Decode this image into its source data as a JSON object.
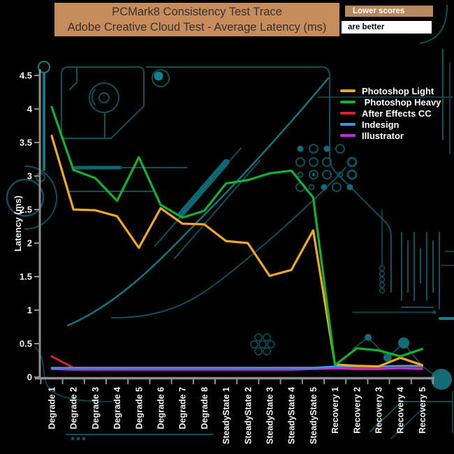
{
  "header": {
    "title_line1": "PCMark8 Consistency Test Trace",
    "title_line2": "Adobe Creative Cloud Test -  Average Latency (ms)",
    "badge_top": "Lower scores",
    "badge_bottom": "are better"
  },
  "colors": {
    "title_bg": "#c78c5c",
    "badge_tan_bg": "#b8895e",
    "badge_white_bg": "#ffffff",
    "axis": "#8f8f8f",
    "axis_text": "#f5f5f5",
    "circuit_dark": "#0c525a",
    "circuit_bright": "#12828d"
  },
  "chart_data": {
    "type": "line",
    "title": "PCMark8 Consistency Test Trace — Adobe Creative Cloud Test - Average Latency (ms)",
    "xlabel": "",
    "ylabel": "Latency (ms)",
    "ylim": [
      0,
      4.5
    ],
    "ytick_labels": [
      "0",
      "0.5",
      "1",
      "1.5",
      "2",
      "2.5",
      "3",
      "3.5",
      "4",
      "4.5"
    ],
    "grid": false,
    "legend_position": "top-right",
    "categories": [
      "Degrade 1",
      "Degrade 2",
      "Degrade 3",
      "Degrade 4",
      "Degrade 5",
      "Degrade 6",
      "Degrade 7",
      "Degrade 8",
      "SteadyState 1",
      "SteadyState 2",
      "SteadyState 3",
      "SteadyState 4",
      "SteadyState 5",
      "Recovery 1",
      "Recovery 2",
      "Recovery 3",
      "Recovery 4",
      "Recovery 5"
    ],
    "series": [
      {
        "name": "Photoshop Light",
        "color": "#F5A623",
        "values": [
          3.6,
          2.5,
          2.49,
          2.4,
          1.93,
          2.52,
          2.29,
          2.28,
          2.03,
          2.0,
          1.51,
          1.6,
          2.19,
          0.19,
          0.17,
          0.16,
          0.29,
          0.18
        ]
      },
      {
        "name": " Photoshop Heavy",
        "color": "#10B42C",
        "values": [
          4.03,
          3.09,
          2.97,
          2.63,
          3.28,
          2.57,
          2.38,
          2.48,
          2.89,
          2.94,
          3.04,
          3.08,
          2.68,
          0.18,
          0.43,
          0.4,
          0.31,
          0.42
        ]
      },
      {
        "name": "After Effects CC",
        "color": "#DD2222",
        "values": [
          0.31,
          0.14,
          0.14,
          0.14,
          0.14,
          0.14,
          0.14,
          0.14,
          0.14,
          0.14,
          0.14,
          0.14,
          0.14,
          0.15,
          0.14,
          0.14,
          0.15,
          0.14
        ]
      },
      {
        "name": "Indesign",
        "color": "#3399F0",
        "values": [
          0.14,
          0.14,
          0.14,
          0.14,
          0.14,
          0.14,
          0.14,
          0.14,
          0.14,
          0.14,
          0.14,
          0.14,
          0.14,
          0.16,
          0.16,
          0.16,
          0.17,
          0.17
        ]
      },
      {
        "name": "Illustrator",
        "color": "#BB30D9",
        "values": [
          0.12,
          0.11,
          0.11,
          0.11,
          0.11,
          0.11,
          0.11,
          0.11,
          0.11,
          0.11,
          0.11,
          0.11,
          0.12,
          0.13,
          0.12,
          0.12,
          0.13,
          0.12
        ]
      }
    ]
  }
}
